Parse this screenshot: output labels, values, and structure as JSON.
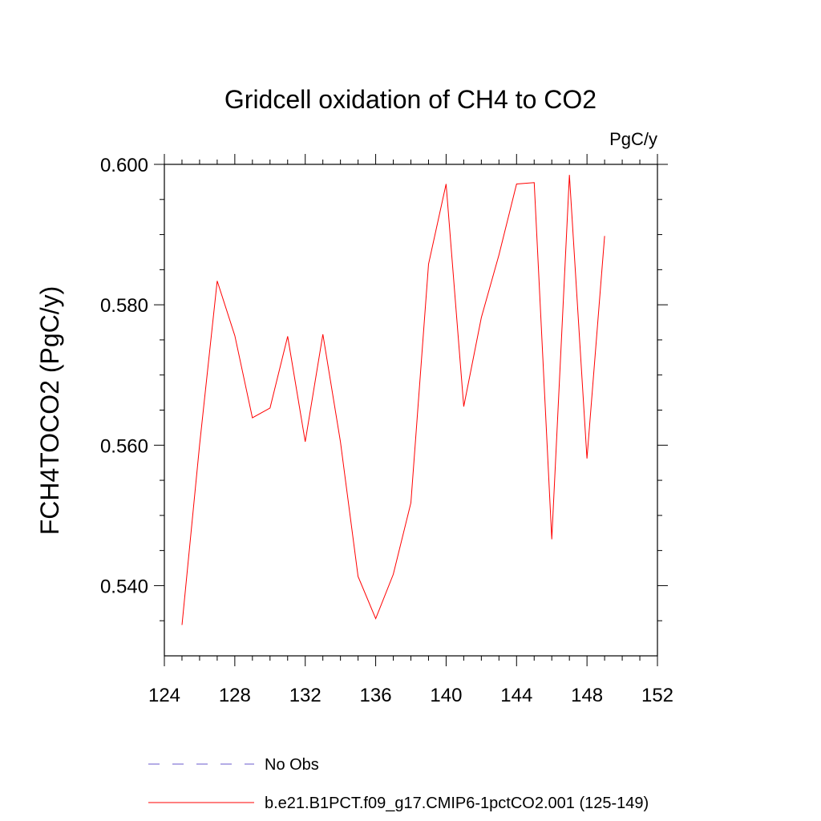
{
  "chart_data": {
    "type": "line",
    "title": "Gridcell oxidation of CH4 to CO2",
    "units": "PgC/y",
    "xlabel": "",
    "ylabel": "FCH4TOCO2  (PgC/y)",
    "xlim": [
      124,
      152
    ],
    "ylim": [
      0.53,
      0.6
    ],
    "xticks": [
      124,
      128,
      132,
      136,
      140,
      144,
      148,
      152
    ],
    "xtick_labels": [
      "124",
      "128",
      "132",
      "136",
      "140",
      "144",
      "148",
      "152"
    ],
    "yticks": [
      0.54,
      0.56,
      0.58,
      0.6
    ],
    "ytick_labels": [
      "0.540",
      "0.560",
      "0.580",
      "0.600"
    ],
    "series": [
      {
        "name": "b.e21.B1PCT.f09_g17.CMIP6-1pctCO2.001 (125-149)",
        "color": "#ff0000",
        "style": "solid",
        "x": [
          125,
          126,
          127,
          128,
          129,
          130,
          131,
          132,
          133,
          134,
          135,
          136,
          137,
          138,
          139,
          140,
          141,
          142,
          143,
          144,
          145,
          146,
          147,
          148,
          149
        ],
        "values": [
          0.5344,
          0.56,
          0.5834,
          0.5756,
          0.5639,
          0.5653,
          0.5755,
          0.5605,
          0.5758,
          0.5605,
          0.5413,
          0.5353,
          0.5416,
          0.5518,
          0.5858,
          0.5972,
          0.5655,
          0.5782,
          0.5871,
          0.5972,
          0.5974,
          0.5466,
          0.5985,
          0.5581,
          0.5898
        ]
      }
    ],
    "legend": [
      {
        "label": "No Obs",
        "color": "#6a5acd",
        "style": "dashed"
      },
      {
        "label": "b.e21.B1PCT.f09_g17.CMIP6-1pctCO2.001 (125-149)",
        "color": "#ff0000",
        "style": "solid"
      }
    ]
  }
}
